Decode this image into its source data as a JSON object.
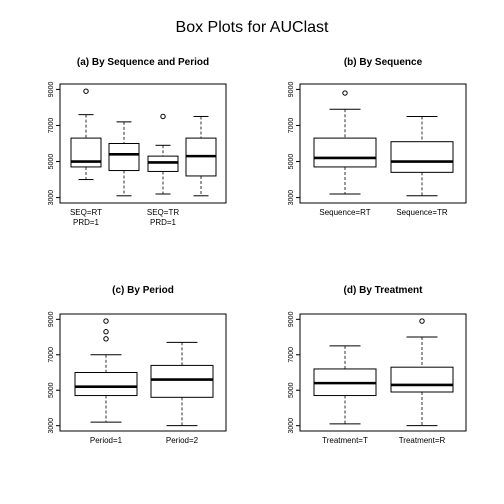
{
  "title": "Box Plots for AUClast",
  "chart_data": [
    {
      "type": "boxplot",
      "title": "(a) By Sequence and Period",
      "ylim": [
        2700,
        9300
      ],
      "yticks": [
        3000,
        5000,
        7000,
        9000
      ],
      "ytick_labels": [
        "3000",
        "5000",
        "7000",
        "9000"
      ],
      "category_labels": [
        {
          "lines": [
            "SEQ=RT",
            "PRD=1"
          ],
          "box": 0
        },
        {
          "lines": [
            "SEQ=TR",
            "PRD=1"
          ],
          "box": 2
        }
      ],
      "boxes": [
        {
          "min": 4000,
          "q1": 4700,
          "median": 5000,
          "q3": 6300,
          "max": 7600,
          "outliers": [
            8900
          ]
        },
        {
          "min": 3100,
          "q1": 4500,
          "median": 5400,
          "q3": 6000,
          "max": 7200,
          "outliers": []
        },
        {
          "min": 3200,
          "q1": 4450,
          "median": 4950,
          "q3": 5300,
          "max": 5900,
          "outliers": [
            7500
          ]
        },
        {
          "min": 3100,
          "q1": 4200,
          "median": 5300,
          "q3": 6300,
          "max": 7500,
          "outliers": []
        }
      ]
    },
    {
      "type": "boxplot",
      "title": "(b) By Sequence",
      "ylim": [
        2700,
        9300
      ],
      "yticks": [
        3000,
        5000,
        7000,
        9000
      ],
      "ytick_labels": [
        "3000",
        "5000",
        "7000",
        "9000"
      ],
      "category_labels": [
        {
          "lines": [
            "Sequence=RT"
          ],
          "box": 0
        },
        {
          "lines": [
            "Sequence=TR"
          ],
          "box": 1
        }
      ],
      "boxes": [
        {
          "min": 3200,
          "q1": 4700,
          "median": 5200,
          "q3": 6300,
          "max": 7900,
          "outliers": [
            8800
          ]
        },
        {
          "min": 3100,
          "q1": 4400,
          "median": 5000,
          "q3": 6100,
          "max": 7500,
          "outliers": []
        }
      ]
    },
    {
      "type": "boxplot",
      "title": "(c) By Period",
      "ylim": [
        2700,
        9300
      ],
      "yticks": [
        3000,
        5000,
        7000,
        9000
      ],
      "ytick_labels": [
        "3000",
        "5000",
        "7000",
        "9000"
      ],
      "category_labels": [
        {
          "lines": [
            "Period=1"
          ],
          "box": 0
        },
        {
          "lines": [
            "Period=2"
          ],
          "box": 1
        }
      ],
      "boxes": [
        {
          "min": 3200,
          "q1": 4700,
          "median": 5200,
          "q3": 6000,
          "max": 7000,
          "outliers": [
            8900,
            8300,
            7900
          ]
        },
        {
          "min": 3000,
          "q1": 4600,
          "median": 5600,
          "q3": 6400,
          "max": 7700,
          "outliers": []
        }
      ]
    },
    {
      "type": "boxplot",
      "title": "(d) By Treatment",
      "ylim": [
        2700,
        9300
      ],
      "yticks": [
        3000,
        5000,
        7000,
        9000
      ],
      "ytick_labels": [
        "3000",
        "5000",
        "7000",
        "9000"
      ],
      "category_labels": [
        {
          "lines": [
            "Treatment=T"
          ],
          "box": 0
        },
        {
          "lines": [
            "Treatment=R"
          ],
          "box": 1
        }
      ],
      "boxes": [
        {
          "min": 3100,
          "q1": 4700,
          "median": 5400,
          "q3": 6200,
          "max": 7500,
          "outliers": []
        },
        {
          "min": 3000,
          "q1": 4900,
          "median": 5300,
          "q3": 6300,
          "max": 8000,
          "outliers": [
            8900
          ]
        }
      ]
    }
  ]
}
